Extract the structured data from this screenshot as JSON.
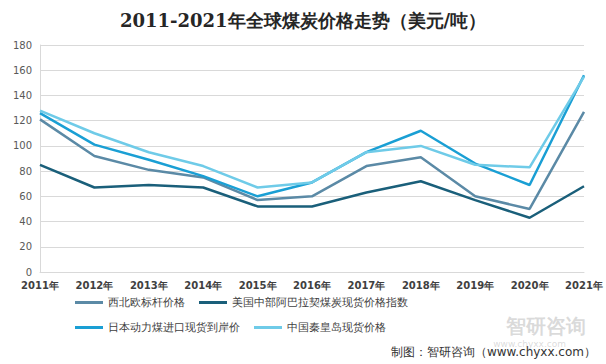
{
  "chart_data": {
    "type": "line",
    "title": "2011-2021年全球煤炭价格走势（美元/吨）",
    "source": "制图：智研咨询（www.chyxx.com）",
    "watermark": [
      "智研咨询",
      "www.chyxx.com"
    ],
    "categories": [
      "2011年",
      "2012年",
      "2013年",
      "2014年",
      "2015年",
      "2016年",
      "2017年",
      "2018年",
      "2019年",
      "2020年",
      "2021年"
    ],
    "series": [
      {
        "name": "西北欧标杆价格",
        "color": "#5b8aa6",
        "values": [
          121,
          92,
          81,
          75,
          57,
          60,
          84,
          91,
          60,
          50,
          127
        ]
      },
      {
        "name": "美国中部阿巴拉契煤炭现货价格指数",
        "color": "#1a5f7a",
        "values": [
          85,
          67,
          69,
          67,
          52,
          52,
          63,
          72,
          57,
          43,
          68
        ]
      },
      {
        "name": "日本动力煤进口现货到岸价",
        "color": "#1a9fd4",
        "values": [
          126,
          101,
          89,
          76,
          60,
          71,
          95,
          112,
          86,
          69,
          156
        ]
      },
      {
        "name": "中国秦皇岛现货价格",
        "color": "#6fcbe8",
        "values": [
          128,
          110,
          95,
          84,
          67,
          71,
          95,
          100,
          85,
          83,
          155
        ]
      }
    ],
    "ylim": [
      0,
      180
    ],
    "yticks": [
      0,
      20,
      40,
      60,
      80,
      100,
      120,
      140,
      160,
      180
    ],
    "grid": true,
    "legend": "bottom"
  }
}
